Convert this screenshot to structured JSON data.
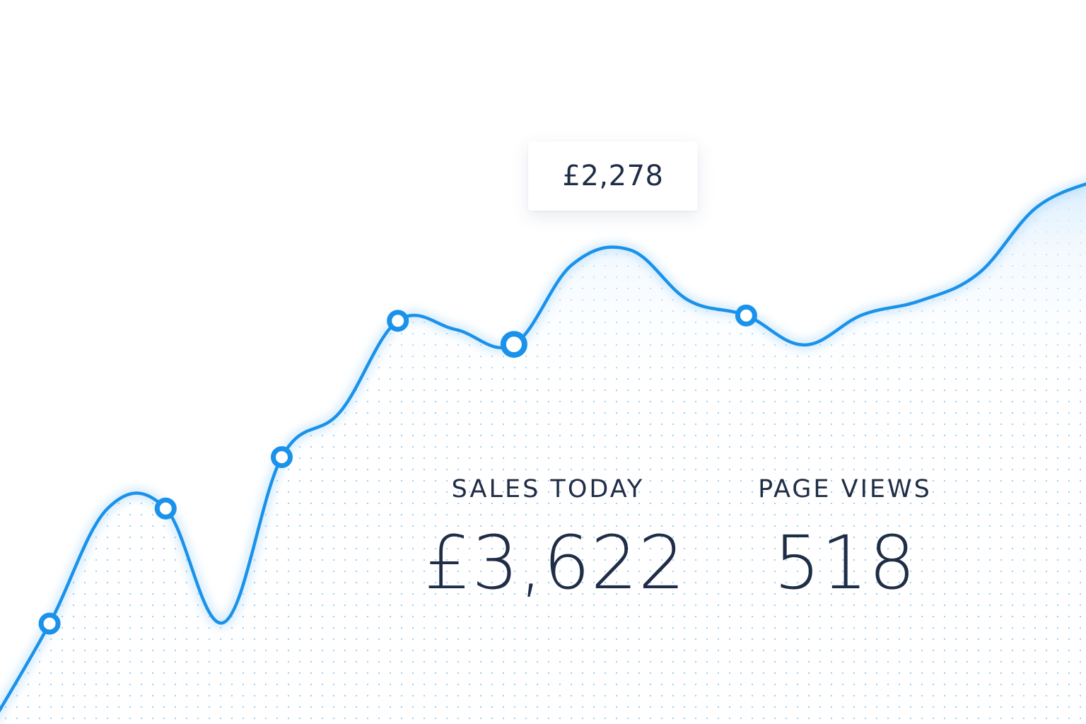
{
  "colors": {
    "line": "#1a92ea",
    "text": "#1f2d47",
    "background": "#ffffff"
  },
  "tooltip": {
    "value": "£2,278"
  },
  "stats": {
    "sales_today": {
      "label": "SALES TODAY",
      "value": "£3,622"
    },
    "page_views": {
      "label": "PAGE VIEWS",
      "value": "518"
    }
  },
  "chart_data": {
    "type": "area",
    "title": "",
    "xlabel": "",
    "ylabel": "",
    "grid": false,
    "series": [
      {
        "values": [
          0,
          170,
          365,
          365,
          172,
          452,
          528,
          683,
          668,
          643,
          778,
          803,
          718,
          692,
          642,
          693,
          717,
          763,
          875,
          920
        ],
        "markers": [
          1,
          3,
          5,
          7,
          9,
          13
        ],
        "highlighted_point": 9
      }
    ]
  }
}
